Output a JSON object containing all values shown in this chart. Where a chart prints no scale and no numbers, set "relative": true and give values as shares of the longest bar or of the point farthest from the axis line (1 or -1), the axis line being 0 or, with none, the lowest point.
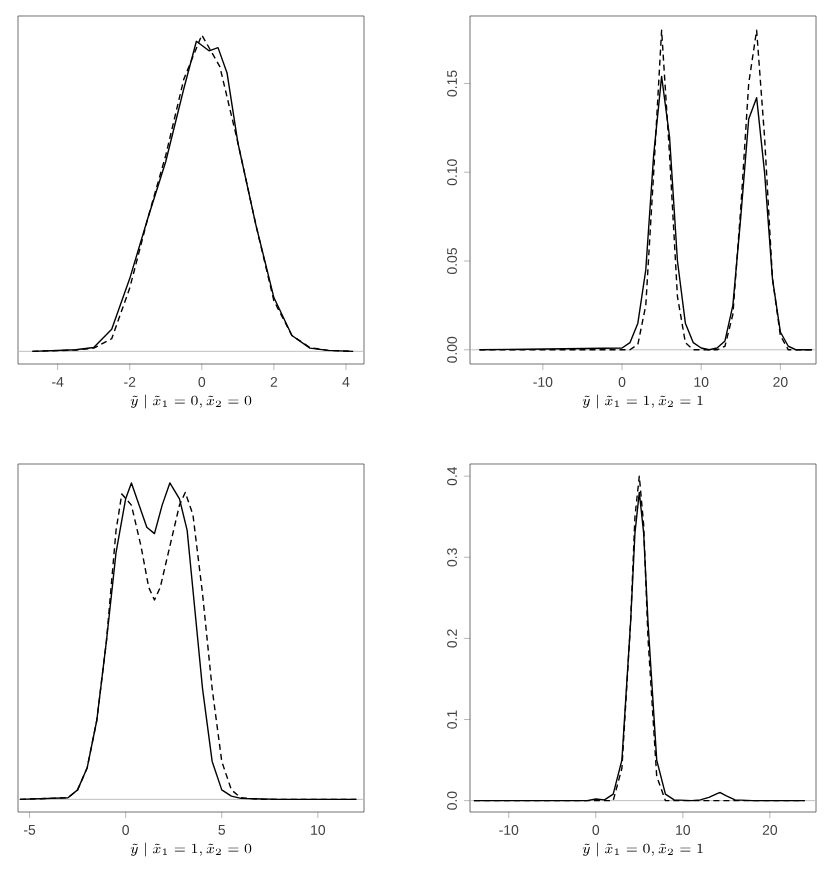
{
  "chart_data": [
    {
      "type": "line",
      "relative": true,
      "tick_labels": "x",
      "xlabel": "\\tilde{y} \\mid \\tilde{x}_1 = 0, \\tilde{x}_2 = 0",
      "xlim": [
        -5.1,
        4.5
      ],
      "xticks": [
        -4,
        -2,
        0,
        2,
        4
      ],
      "ref_lines": [
        {
          "axis": "y",
          "value": 0,
          "color": "#bebebe"
        }
      ],
      "series": [
        {
          "color": "#000000",
          "line_style": "solid",
          "x": [
            -4.7,
            -3.5,
            -3,
            -2.5,
            -2,
            -1.5,
            -1,
            -0.5,
            -0.15,
            0.2,
            0.45,
            0.7,
            1,
            1.5,
            2,
            2.5,
            3,
            3.5,
            4.2
          ],
          "values": [
            0,
            0.005,
            0.012,
            0.07,
            0.23,
            0.42,
            0.6,
            0.83,
            0.98,
            0.95,
            0.96,
            0.88,
            0.66,
            0.4,
            0.17,
            0.05,
            0.01,
            0.003,
            0
          ]
        },
        {
          "color": "#000000",
          "line_style": "dashed",
          "x": [
            -4.7,
            -3.5,
            -3,
            -2.5,
            -2,
            -1.5,
            -1,
            -0.5,
            0,
            0.5,
            1,
            1.5,
            2,
            2.5,
            3,
            3.5,
            4.2
          ],
          "values": [
            0,
            0.004,
            0.01,
            0.04,
            0.2,
            0.42,
            0.62,
            0.86,
            1,
            0.9,
            0.66,
            0.4,
            0.16,
            0.05,
            0.012,
            0.003,
            0
          ]
        }
      ]
    },
    {
      "type": "line",
      "xlabel": "\\tilde{y} \\mid \\tilde{x}_1 = 1, \\tilde{x}_2 = 1",
      "xlim": [
        -19.2,
        24.5
      ],
      "ylim": [
        -0.008,
        0.188
      ],
      "xticks": [
        -10,
        0,
        10,
        20
      ],
      "yticks": [
        {
          "value": 0,
          "label": "0.00"
        },
        {
          "value": 0.05,
          "label": "0.05"
        },
        {
          "value": 0.1,
          "label": "0.10"
        },
        {
          "value": 0.15,
          "label": "0.15"
        }
      ],
      "ref_lines": [
        {
          "axis": "y",
          "value": 0,
          "color": "#bebebe"
        }
      ],
      "series": [
        {
          "color": "#000000",
          "line_style": "solid",
          "x": [
            -18,
            0,
            1,
            2,
            3,
            4,
            5,
            6,
            7,
            8,
            9,
            10,
            11,
            12,
            13,
            14,
            15,
            16,
            17,
            18,
            19,
            20,
            21,
            22,
            24
          ],
          "values": [
            0,
            0.001,
            0.004,
            0.015,
            0.045,
            0.11,
            0.154,
            0.12,
            0.05,
            0.015,
            0.004,
            0.001,
            0,
            0.001,
            0.005,
            0.025,
            0.075,
            0.13,
            0.142,
            0.1,
            0.04,
            0.01,
            0.002,
            0,
            0
          ]
        },
        {
          "color": "#000000",
          "line_style": "dashed",
          "x": [
            -18,
            1,
            2,
            3,
            4,
            5,
            6,
            7,
            8,
            9,
            12,
            13,
            14,
            15,
            16,
            17,
            18,
            19,
            20,
            21,
            24
          ],
          "values": [
            0,
            0,
            0.003,
            0.025,
            0.1,
            0.18,
            0.11,
            0.03,
            0.004,
            0,
            0,
            0.002,
            0.02,
            0.08,
            0.15,
            0.18,
            0.12,
            0.04,
            0.008,
            0,
            0
          ]
        }
      ]
    },
    {
      "type": "line",
      "relative": true,
      "tick_labels": "x",
      "xlabel": "\\tilde{y} \\mid \\tilde{x}_1 = 1, \\tilde{x}_2 = 0",
      "xlim": [
        -5.6,
        12.4
      ],
      "xticks": [
        -5,
        0,
        5,
        10
      ],
      "ref_lines": [
        {
          "axis": "y",
          "value": 0,
          "color": "#bebebe"
        }
      ],
      "series": [
        {
          "color": "#000000",
          "line_style": "solid",
          "x": [
            -5.5,
            -3,
            -2.5,
            -2,
            -1.5,
            -1,
            -0.5,
            0,
            0.3,
            0.7,
            1.1,
            1.5,
            1.9,
            2.3,
            2.8,
            3.2,
            3.6,
            4,
            4.5,
            5,
            5.5,
            6,
            8,
            12
          ],
          "values": [
            0,
            0.005,
            0.03,
            0.1,
            0.25,
            0.5,
            0.78,
            0.95,
            1,
            0.93,
            0.86,
            0.84,
            0.93,
            1,
            0.95,
            0.85,
            0.6,
            0.35,
            0.12,
            0.03,
            0.01,
            0.003,
            0,
            0
          ]
        },
        {
          "color": "#000000",
          "line_style": "dashed",
          "x": [
            -5.5,
            -3,
            -2.5,
            -2,
            -1.5,
            -1,
            -0.5,
            -0.2,
            0.3,
            0.8,
            1.2,
            1.5,
            1.8,
            2.3,
            2.8,
            3.1,
            3.5,
            4,
            4.5,
            5,
            5.5,
            6,
            7,
            12
          ],
          "values": [
            0,
            0.005,
            0.03,
            0.1,
            0.25,
            0.5,
            0.85,
            0.965,
            0.93,
            0.8,
            0.67,
            0.63,
            0.67,
            0.8,
            0.93,
            0.97,
            0.9,
            0.65,
            0.35,
            0.12,
            0.03,
            0.005,
            0,
            0
          ]
        }
      ]
    },
    {
      "type": "line",
      "xlabel": "\\tilde{y} \\mid \\tilde{x}_1 = 0, \\tilde{x}_2 = 1",
      "xlim": [
        -14.45,
        25.3
      ],
      "ylim": [
        -0.014,
        0.415
      ],
      "xticks": [
        -10,
        0,
        10,
        20
      ],
      "yticks": [
        {
          "value": 0,
          "label": "0.0"
        },
        {
          "value": 0.1,
          "label": "0.1"
        },
        {
          "value": 0.2,
          "label": "0.2"
        },
        {
          "value": 0.3,
          "label": "0.3"
        },
        {
          "value": 0.4,
          "label": "0.4"
        }
      ],
      "ref_lines": [
        {
          "axis": "y",
          "value": 0,
          "color": "#bebebe"
        }
      ],
      "series": [
        {
          "color": "#000000",
          "line_style": "solid",
          "x": [
            -14,
            -1,
            0,
            1,
            2,
            3,
            4,
            4.5,
            5,
            5.5,
            6,
            7,
            8,
            9,
            11,
            12,
            13,
            14,
            14.3,
            15,
            16,
            18,
            24
          ],
          "values": [
            0,
            0,
            0.002,
            0.001,
            0.008,
            0.05,
            0.22,
            0.33,
            0.38,
            0.33,
            0.22,
            0.05,
            0.008,
            0.001,
            0,
            0.001,
            0.004,
            0.009,
            0.01,
            0.006,
            0.001,
            0,
            0
          ]
        },
        {
          "color": "#000000",
          "line_style": "dashed",
          "x": [
            -14,
            2,
            3,
            4,
            4.5,
            5,
            5.5,
            6,
            7,
            8,
            24
          ],
          "values": [
            0,
            0,
            0.04,
            0.22,
            0.35,
            0.4,
            0.34,
            0.2,
            0.03,
            0,
            0
          ]
        }
      ]
    }
  ]
}
